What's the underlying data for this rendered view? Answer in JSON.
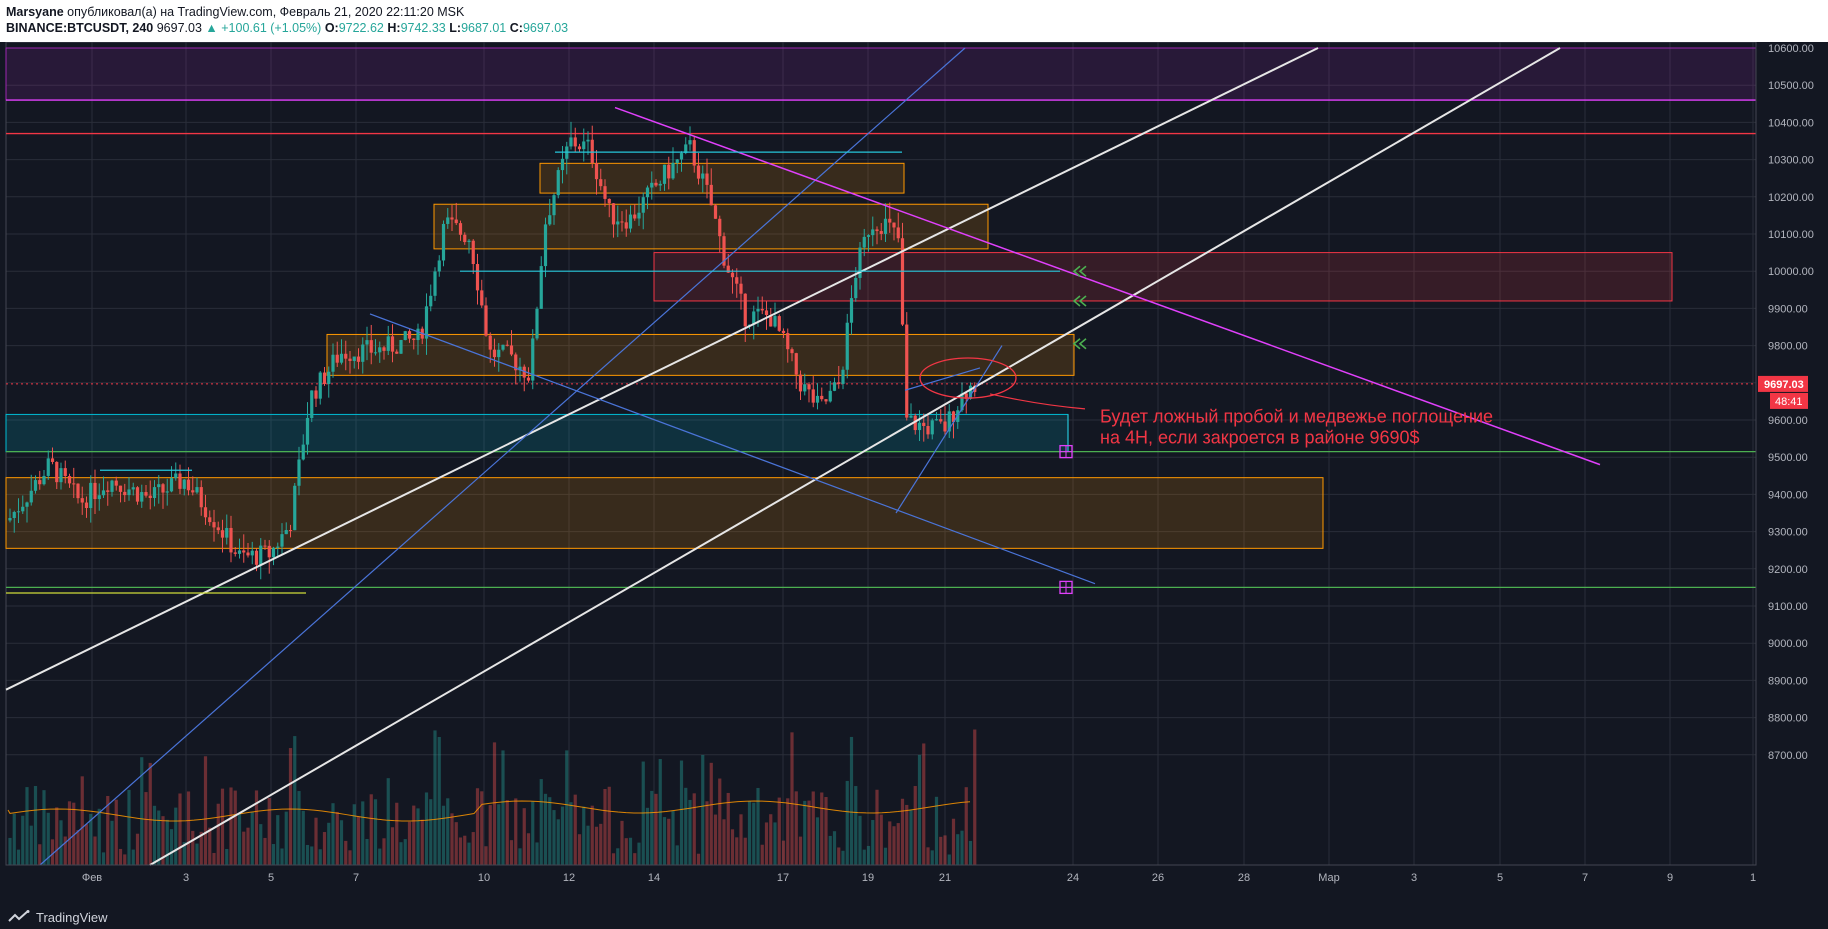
{
  "header": {
    "author": "Marsyane",
    "published_text": " опубликовал(а) на TradingView.com, Февраль 21, 2020 22:11:20 MSK",
    "symbol": "BINANCE:BTCUSDT, 240",
    "last": "9697.03",
    "change": "▲ +100.61 (+1.05%)",
    "o_label": "O:",
    "o_value": "9722.62",
    "h_label": "H:",
    "h_value": "9742.33",
    "l_label": "L:",
    "l_value": "9687.01",
    "c_label": "C:",
    "c_value": "9697.03"
  },
  "chart_data": {
    "type": "candlestick",
    "symbol": "BINANCE:BTCUSDT",
    "interval": "240",
    "y_ticks": [
      "10600.00",
      "10500.00",
      "10400.00",
      "10300.00",
      "10200.00",
      "10100.00",
      "10000.00",
      "9900.00",
      "9800.00",
      "9700.00",
      "9600.00",
      "9500.00",
      "9400.00",
      "9300.00",
      "9200.00",
      "9100.00",
      "9000.00",
      "8900.00",
      "8800.00",
      "8700.00"
    ],
    "y_range": [
      8700,
      10600
    ],
    "x_ticks": [
      "Фев",
      "3",
      "5",
      "7",
      "10",
      "12",
      "14",
      "17",
      "19",
      "21",
      "24",
      "26",
      "28",
      "Мар",
      "3",
      "5",
      "7",
      "9",
      "1"
    ],
    "price_label": "9697.03",
    "countdown_label": "48:41",
    "annotation": "Будет ложный пробой и медвежье поглощение\n на 4Н, если закроется в районе 9690$",
    "horizontal_levels": [
      {
        "price": 10460,
        "color": "#e040fb"
      },
      {
        "price": 10370,
        "color": "#f23645"
      },
      {
        "price": 9515,
        "color": "#4caf50"
      },
      {
        "price": 9150,
        "color": "#4caf50"
      },
      {
        "price": 9697,
        "color": "#f23645",
        "style": "dotted"
      }
    ],
    "zones": [
      {
        "from": 10460,
        "to": 10600,
        "color": "#9c27b0"
      },
      {
        "from": 10060,
        "to": 10180,
        "color": "#ff9800"
      },
      {
        "from": 10210,
        "to": 10290,
        "color": "#ff9800"
      },
      {
        "from": 9920,
        "to": 10050,
        "color": "#f23645"
      },
      {
        "from": 9720,
        "to": 9830,
        "color": "#ff9800"
      },
      {
        "from": 9515,
        "to": 9615,
        "color": "#00bcd4"
      },
      {
        "from": 9255,
        "to": 9445,
        "color": "#ff9800"
      }
    ],
    "colors": {
      "up": "#26a69a",
      "down": "#ef5350",
      "background": "#131722",
      "grid": "#2a2e39",
      "annotation": "#f23645"
    }
  },
  "footer": {
    "brand": "TradingView"
  }
}
